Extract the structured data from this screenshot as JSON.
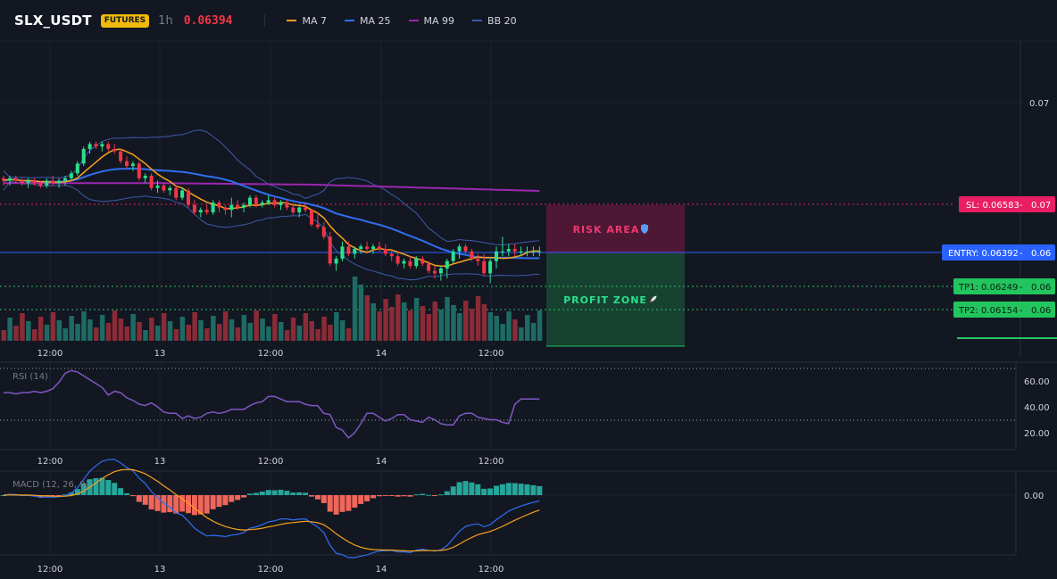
{
  "header": {
    "symbol": "SLX_USDT",
    "badge": "FUTURES",
    "timeframe": "1h",
    "price": "0.06394",
    "legend": [
      {
        "label": "MA 7",
        "color": "#f7a21b"
      },
      {
        "label": "MA 25",
        "color": "#2f6ff0"
      },
      {
        "label": "MA 99",
        "color": "#9c27b0"
      },
      {
        "label": "BB 20",
        "color": "#3d5ba9"
      }
    ]
  },
  "colors": {
    "background": "#131722",
    "grid": "#1e2230",
    "bull": "#26a69a",
    "bull_bright": "#2be08d",
    "bear": "#f23645",
    "risk": "#e91e63",
    "entry": "#2962ff",
    "tp": "#22c55e"
  },
  "price_axis": {
    "ticks": [
      "0.07"
    ]
  },
  "time_axis": {
    "ticks": [
      "12:00",
      "13",
      "12:00",
      "14",
      "12:00"
    ]
  },
  "levels": {
    "sl": {
      "label": "SL: 0.06583",
      "axis": "0.07",
      "value": 0.06583
    },
    "entry": {
      "label": "ENTRY: 0.06392",
      "axis": "0.06",
      "value": 0.06392
    },
    "tp1": {
      "label": "TP1: 0.06249",
      "axis": "0.06",
      "value": 0.06249
    },
    "tp2": {
      "label": "TP2: 0.06154",
      "axis": "0.06",
      "value": 0.06154
    }
  },
  "zones": {
    "risk": {
      "label": "RISK AREA",
      "icon": "shield-icon"
    },
    "profit": {
      "label": "PROFIT ZONE",
      "icon": "rocket-icon"
    }
  },
  "rsi": {
    "title": "RSI (14)",
    "ticks": [
      "60.00",
      "40.00",
      "20.00"
    ],
    "values": [
      51,
      51,
      50,
      51,
      51,
      52,
      51,
      52,
      54,
      59,
      66,
      68,
      67,
      64,
      61,
      58,
      55,
      49,
      52,
      51,
      47,
      45,
      42,
      41,
      43,
      40,
      36,
      35,
      35,
      31,
      33,
      31,
      32,
      35,
      36,
      35,
      36,
      38,
      38,
      38,
      41,
      43,
      44,
      48,
      48,
      46,
      44,
      44,
      44,
      42,
      41,
      41,
      35,
      34,
      24,
      22,
      16,
      20,
      27,
      35,
      35,
      32,
      29,
      31,
      34,
      34,
      30,
      29,
      28,
      32,
      30,
      27,
      26,
      26,
      33,
      35,
      35,
      32,
      31,
      30,
      30,
      28,
      27,
      42,
      46,
      46,
      46,
      46
    ]
  },
  "macd": {
    "title": "MACD (12, 26, 9)",
    "ticks": [
      "0.00"
    ]
  },
  "chart_data": {
    "type": "candlestick",
    "symbol": "SLX_USDT",
    "interval": "1h",
    "bars": 88,
    "last_price": 0.06394,
    "ohlc": [
      [
        0.0669,
        0.067,
        0.0666,
        0.0668
      ],
      [
        0.0668,
        0.067,
        0.0666,
        0.0669
      ],
      [
        0.0669,
        0.067,
        0.0667,
        0.0668
      ],
      [
        0.0668,
        0.0669,
        0.0666,
        0.0667
      ],
      [
        0.0667,
        0.0669,
        0.0665,
        0.0668
      ],
      [
        0.0668,
        0.0669,
        0.0666,
        0.0667
      ],
      [
        0.0667,
        0.0668,
        0.0665,
        0.0666
      ],
      [
        0.0666,
        0.0669,
        0.0665,
        0.0668
      ],
      [
        0.0668,
        0.067,
        0.0666,
        0.0667
      ],
      [
        0.0667,
        0.0669,
        0.0665,
        0.0668
      ],
      [
        0.0668,
        0.067,
        0.0666,
        0.0669
      ],
      [
        0.0669,
        0.0672,
        0.0668,
        0.0671
      ],
      [
        0.0671,
        0.0676,
        0.067,
        0.0675
      ],
      [
        0.0675,
        0.0682,
        0.0674,
        0.0681
      ],
      [
        0.0681,
        0.0684,
        0.0679,
        0.0683
      ],
      [
        0.0683,
        0.0684,
        0.0681,
        0.0682
      ],
      [
        0.0682,
        0.0684,
        0.068,
        0.0683
      ],
      [
        0.0683,
        0.0684,
        0.068,
        0.0681
      ],
      [
        0.0681,
        0.0683,
        0.0679,
        0.068
      ],
      [
        0.068,
        0.0681,
        0.0675,
        0.0676
      ],
      [
        0.0676,
        0.0678,
        0.0673,
        0.0674
      ],
      [
        0.0674,
        0.0676,
        0.0672,
        0.0675
      ],
      [
        0.0675,
        0.0676,
        0.0668,
        0.0669
      ],
      [
        0.0669,
        0.0671,
        0.0667,
        0.067
      ],
      [
        0.067,
        0.0671,
        0.0664,
        0.0665
      ],
      [
        0.0665,
        0.0668,
        0.0663,
        0.0666
      ],
      [
        0.0666,
        0.0667,
        0.0663,
        0.0664
      ],
      [
        0.0664,
        0.0666,
        0.0662,
        0.0665
      ],
      [
        0.0665,
        0.0666,
        0.066,
        0.0661
      ],
      [
        0.0661,
        0.0665,
        0.066,
        0.0664
      ],
      [
        0.0664,
        0.0665,
        0.0657,
        0.0658
      ],
      [
        0.0658,
        0.066,
        0.0654,
        0.0655
      ],
      [
        0.0655,
        0.0657,
        0.0653,
        0.0656
      ],
      [
        0.0656,
        0.0658,
        0.0654,
        0.0655
      ],
      [
        0.0655,
        0.066,
        0.0654,
        0.0659
      ],
      [
        0.0659,
        0.066,
        0.0655,
        0.0657
      ],
      [
        0.0657,
        0.0658,
        0.0654,
        0.0656
      ],
      [
        0.0656,
        0.0661,
        0.0653,
        0.0658
      ],
      [
        0.0658,
        0.066,
        0.0656,
        0.0657
      ],
      [
        0.0657,
        0.0659,
        0.0655,
        0.0658
      ],
      [
        0.0658,
        0.0662,
        0.0657,
        0.0661
      ],
      [
        0.0661,
        0.0662,
        0.0657,
        0.0658
      ],
      [
        0.0658,
        0.066,
        0.0657,
        0.0659
      ],
      [
        0.0659,
        0.0662,
        0.0658,
        0.066
      ],
      [
        0.066,
        0.0661,
        0.0657,
        0.0658
      ],
      [
        0.0658,
        0.066,
        0.0656,
        0.0659
      ],
      [
        0.0659,
        0.066,
        0.0656,
        0.0657
      ],
      [
        0.0657,
        0.0659,
        0.0654,
        0.0655
      ],
      [
        0.0655,
        0.0658,
        0.0653,
        0.0657
      ],
      [
        0.0657,
        0.0659,
        0.0655,
        0.0656
      ],
      [
        0.0656,
        0.0656,
        0.0649,
        0.065
      ],
      [
        0.065,
        0.0655,
        0.0648,
        0.0649
      ],
      [
        0.0649,
        0.0651,
        0.0644,
        0.0645
      ],
      [
        0.0645,
        0.0647,
        0.0633,
        0.0634
      ],
      [
        0.0634,
        0.0637,
        0.0631,
        0.0636
      ],
      [
        0.0636,
        0.0643,
        0.0635,
        0.0641
      ],
      [
        0.0641,
        0.0643,
        0.0637,
        0.0638
      ],
      [
        0.0638,
        0.0641,
        0.0636,
        0.064
      ],
      [
        0.064,
        0.0642,
        0.0638,
        0.0641
      ],
      [
        0.0641,
        0.0643,
        0.0639,
        0.064
      ],
      [
        0.064,
        0.0642,
        0.0638,
        0.0641
      ],
      [
        0.0641,
        0.0643,
        0.0639,
        0.064
      ],
      [
        0.064,
        0.0642,
        0.0637,
        0.0638
      ],
      [
        0.0638,
        0.064,
        0.0635,
        0.0637
      ],
      [
        0.0637,
        0.0639,
        0.0633,
        0.0634
      ],
      [
        0.0634,
        0.0636,
        0.0632,
        0.0635
      ],
      [
        0.0635,
        0.0637,
        0.0632,
        0.0633
      ],
      [
        0.0633,
        0.0637,
        0.0632,
        0.0636
      ],
      [
        0.0636,
        0.0637,
        0.0633,
        0.0634
      ],
      [
        0.0634,
        0.0635,
        0.063,
        0.0631
      ],
      [
        0.0631,
        0.0633,
        0.0628,
        0.063
      ],
      [
        0.063,
        0.0633,
        0.0627,
        0.0632
      ],
      [
        0.0632,
        0.0636,
        0.0628,
        0.0635
      ],
      [
        0.0635,
        0.064,
        0.0634,
        0.0639
      ],
      [
        0.0639,
        0.0642,
        0.0636,
        0.0641
      ],
      [
        0.0641,
        0.0642,
        0.0638,
        0.0639
      ],
      [
        0.0639,
        0.064,
        0.0635,
        0.0636
      ],
      [
        0.0636,
        0.0638,
        0.0633,
        0.0635
      ],
      [
        0.0635,
        0.0638,
        0.0629,
        0.063
      ],
      [
        0.063,
        0.0636,
        0.0626,
        0.0635
      ],
      [
        0.0635,
        0.0641,
        0.0632,
        0.0639
      ],
      [
        0.0639,
        0.0645,
        0.0637,
        0.0639
      ],
      [
        0.0639,
        0.0642,
        0.0637,
        0.064
      ],
      [
        0.064,
        0.0642,
        0.0637,
        0.0639
      ],
      [
        0.0639,
        0.0641,
        0.0637,
        0.0639
      ],
      [
        0.0639,
        0.0641,
        0.0637,
        0.0639
      ],
      [
        0.0639,
        0.0641,
        0.0637,
        0.0639
      ],
      [
        0.0639,
        0.0641,
        0.0637,
        0.0639
      ]
    ]
  }
}
